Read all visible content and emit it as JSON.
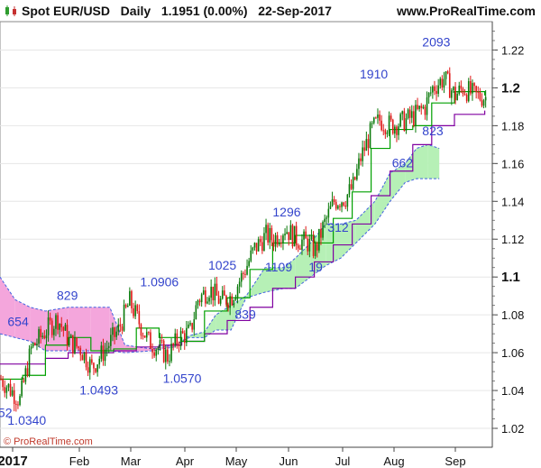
{
  "header": {
    "instrument": "Spot EUR/USD",
    "period": "Daily",
    "quote": "1.1951 (0.00%)",
    "date": "22-Sep-2017",
    "website": "www.ProRealTime.com"
  },
  "footer": {
    "copyright": "© ProRealTime.com"
  },
  "colors": {
    "candle_up": "#0a7a0a",
    "candle_down": "#e01818",
    "ma_fast": "#00a000",
    "ma_slow": "#8000a0",
    "cloud_bull": "#b6f0b6",
    "cloud_bear": "#f4a6dc",
    "cloud_edge": "#4060e0",
    "annotation": "#3344cc"
  },
  "chart_data": {
    "type": "candlestick",
    "title": "Spot EUR/USD Daily",
    "x_tick_labels": [
      "2017",
      "Feb",
      "Mar",
      "Apr",
      "May",
      "Jun",
      "Jul",
      "Aug",
      "Sep"
    ],
    "ylim": [
      1.01,
      1.235
    ],
    "y_ticks": [
      "1.22",
      "1.2",
      "1.18",
      "1.16",
      "1.14",
      "1.12",
      "1.1",
      "1.08",
      "1.06",
      "1.04",
      "1.02"
    ],
    "y_major_ticks": [
      "1.2",
      "1.1"
    ],
    "price_path": [
      [
        0,
        1.046
      ],
      [
        10,
        1.035
      ],
      [
        16,
        1.062
      ],
      [
        24,
        1.072
      ],
      [
        30,
        1.078
      ],
      [
        36,
        1.066
      ],
      [
        42,
        1.062
      ],
      [
        48,
        1.052
      ],
      [
        56,
        1.063
      ],
      [
        62,
        1.072
      ],
      [
        68,
        1.087
      ],
      [
        72,
        1.078
      ],
      [
        78,
        1.066
      ],
      [
        84,
        1.062
      ],
      [
        88,
        1.058
      ],
      [
        94,
        1.068
      ],
      [
        100,
        1.071
      ],
      [
        104,
        1.088
      ],
      [
        110,
        1.094
      ],
      [
        116,
        1.087
      ],
      [
        122,
        1.09
      ],
      [
        128,
        1.102
      ],
      [
        134,
        1.115
      ],
      [
        140,
        1.122
      ],
      [
        144,
        1.12
      ],
      [
        150,
        1.126
      ],
      [
        156,
        1.12
      ],
      [
        162,
        1.118
      ],
      [
        166,
        1.114
      ],
      [
        170,
        1.126
      ],
      [
        176,
        1.14
      ],
      [
        182,
        1.142
      ],
      [
        186,
        1.148
      ],
      [
        190,
        1.163
      ],
      [
        196,
        1.178
      ],
      [
        200,
        1.183
      ],
      [
        206,
        1.18
      ],
      [
        212,
        1.182
      ],
      [
        218,
        1.185
      ],
      [
        224,
        1.19
      ],
      [
        228,
        1.2
      ],
      [
        234,
        1.205
      ],
      [
        240,
        1.196
      ],
      [
        244,
        1.2
      ],
      [
        250,
        1.196
      ],
      [
        256,
        1.195
      ]
    ],
    "ma_fast": [
      [
        0,
        1.046
      ],
      [
        12,
        1.048
      ],
      [
        24,
        1.064
      ],
      [
        36,
        1.068
      ],
      [
        48,
        1.061
      ],
      [
        60,
        1.062
      ],
      [
        72,
        1.073
      ],
      [
        84,
        1.068
      ],
      [
        96,
        1.066
      ],
      [
        108,
        1.082
      ],
      [
        120,
        1.089
      ],
      [
        132,
        1.104
      ],
      [
        144,
        1.118
      ],
      [
        156,
        1.122
      ],
      [
        166,
        1.118
      ],
      [
        176,
        1.131
      ],
      [
        186,
        1.145
      ],
      [
        196,
        1.168
      ],
      [
        206,
        1.178
      ],
      [
        218,
        1.18
      ],
      [
        228,
        1.192
      ],
      [
        240,
        1.198
      ],
      [
        256,
        1.196
      ]
    ],
    "ma_slow": [
      [
        0,
        1.054
      ],
      [
        12,
        1.054
      ],
      [
        24,
        1.057
      ],
      [
        36,
        1.06
      ],
      [
        48,
        1.06
      ],
      [
        60,
        1.061
      ],
      [
        72,
        1.063
      ],
      [
        84,
        1.064
      ],
      [
        96,
        1.066
      ],
      [
        108,
        1.07
      ],
      [
        120,
        1.077
      ],
      [
        132,
        1.084
      ],
      [
        144,
        1.094
      ],
      [
        156,
        1.1
      ],
      [
        166,
        1.108
      ],
      [
        176,
        1.117
      ],
      [
        186,
        1.128
      ],
      [
        196,
        1.143
      ],
      [
        206,
        1.156
      ],
      [
        218,
        1.17
      ],
      [
        228,
        1.18
      ],
      [
        240,
        1.186
      ],
      [
        256,
        1.188
      ]
    ],
    "cloud": [
      {
        "x": 0,
        "a": 1.1,
        "b": 1.07
      },
      {
        "x": 8,
        "a": 1.088,
        "b": 1.068
      },
      {
        "x": 16,
        "a": 1.084,
        "b": 1.066
      },
      {
        "x": 24,
        "a": 1.082,
        "b": 1.061
      },
      {
        "x": 36,
        "a": 1.084,
        "b": 1.061
      },
      {
        "x": 48,
        "a": 1.084,
        "b": 1.061
      },
      {
        "x": 58,
        "a": 1.084,
        "b": 1.061
      },
      {
        "x": 66,
        "a": 1.064,
        "b": 1.06
      },
      {
        "x": 80,
        "a": 1.062,
        "b": 1.061
      },
      {
        "x": 92,
        "a": 1.064,
        "b": 1.063
      },
      {
        "x": 100,
        "a": 1.068,
        "b": 1.069
      },
      {
        "x": 108,
        "a": 1.068,
        "b": 1.071
      },
      {
        "x": 114,
        "a": 1.072,
        "b": 1.08
      },
      {
        "x": 122,
        "a": 1.072,
        "b": 1.085
      },
      {
        "x": 130,
        "a": 1.089,
        "b": 1.09
      },
      {
        "x": 140,
        "a": 1.092,
        "b": 1.105
      },
      {
        "x": 150,
        "a": 1.094,
        "b": 1.105
      },
      {
        "x": 156,
        "a": 1.094,
        "b": 1.11
      },
      {
        "x": 164,
        "a": 1.1,
        "b": 1.118
      },
      {
        "x": 172,
        "a": 1.106,
        "b": 1.128
      },
      {
        "x": 180,
        "a": 1.11,
        "b": 1.128
      },
      {
        "x": 188,
        "a": 1.118,
        "b": 1.13
      },
      {
        "x": 198,
        "a": 1.128,
        "b": 1.14
      },
      {
        "x": 206,
        "a": 1.14,
        "b": 1.155
      },
      {
        "x": 214,
        "a": 1.15,
        "b": 1.16
      },
      {
        "x": 220,
        "a": 1.152,
        "b": 1.168
      },
      {
        "x": 226,
        "a": 1.152,
        "b": 1.17
      },
      {
        "x": 232,
        "a": 1.152,
        "b": 1.168
      }
    ],
    "annotations": [
      {
        "label": "52",
        "x": -1,
        "y": 1.026
      },
      {
        "label": "1.0340",
        "x": 4,
        "y": 1.022
      },
      {
        "label": "654",
        "x": 4,
        "y": 1.074
      },
      {
        "label": "829",
        "x": 30,
        "y": 1.088
      },
      {
        "label": "1.0493",
        "x": 42,
        "y": 1.038
      },
      {
        "label": "1.0906",
        "x": 74,
        "y": 1.095
      },
      {
        "label": "1.0570",
        "x": 86,
        "y": 1.044
      },
      {
        "label": "1025",
        "x": 110,
        "y": 1.104
      },
      {
        "label": "839",
        "x": 124,
        "y": 1.078
      },
      {
        "label": "1296",
        "x": 144,
        "y": 1.132
      },
      {
        "label": "1109",
        "x": 140,
        "y": 1.103
      },
      {
        "label": "19",
        "x": 163,
        "y": 1.103
      },
      {
        "label": "312",
        "x": 173,
        "y": 1.124
      },
      {
        "label": "662",
        "x": 207,
        "y": 1.158
      },
      {
        "label": "1910",
        "x": 190,
        "y": 1.205
      },
      {
        "label": "823",
        "x": 223,
        "y": 1.175
      },
      {
        "label": "2093",
        "x": 223,
        "y": 1.222
      }
    ]
  }
}
